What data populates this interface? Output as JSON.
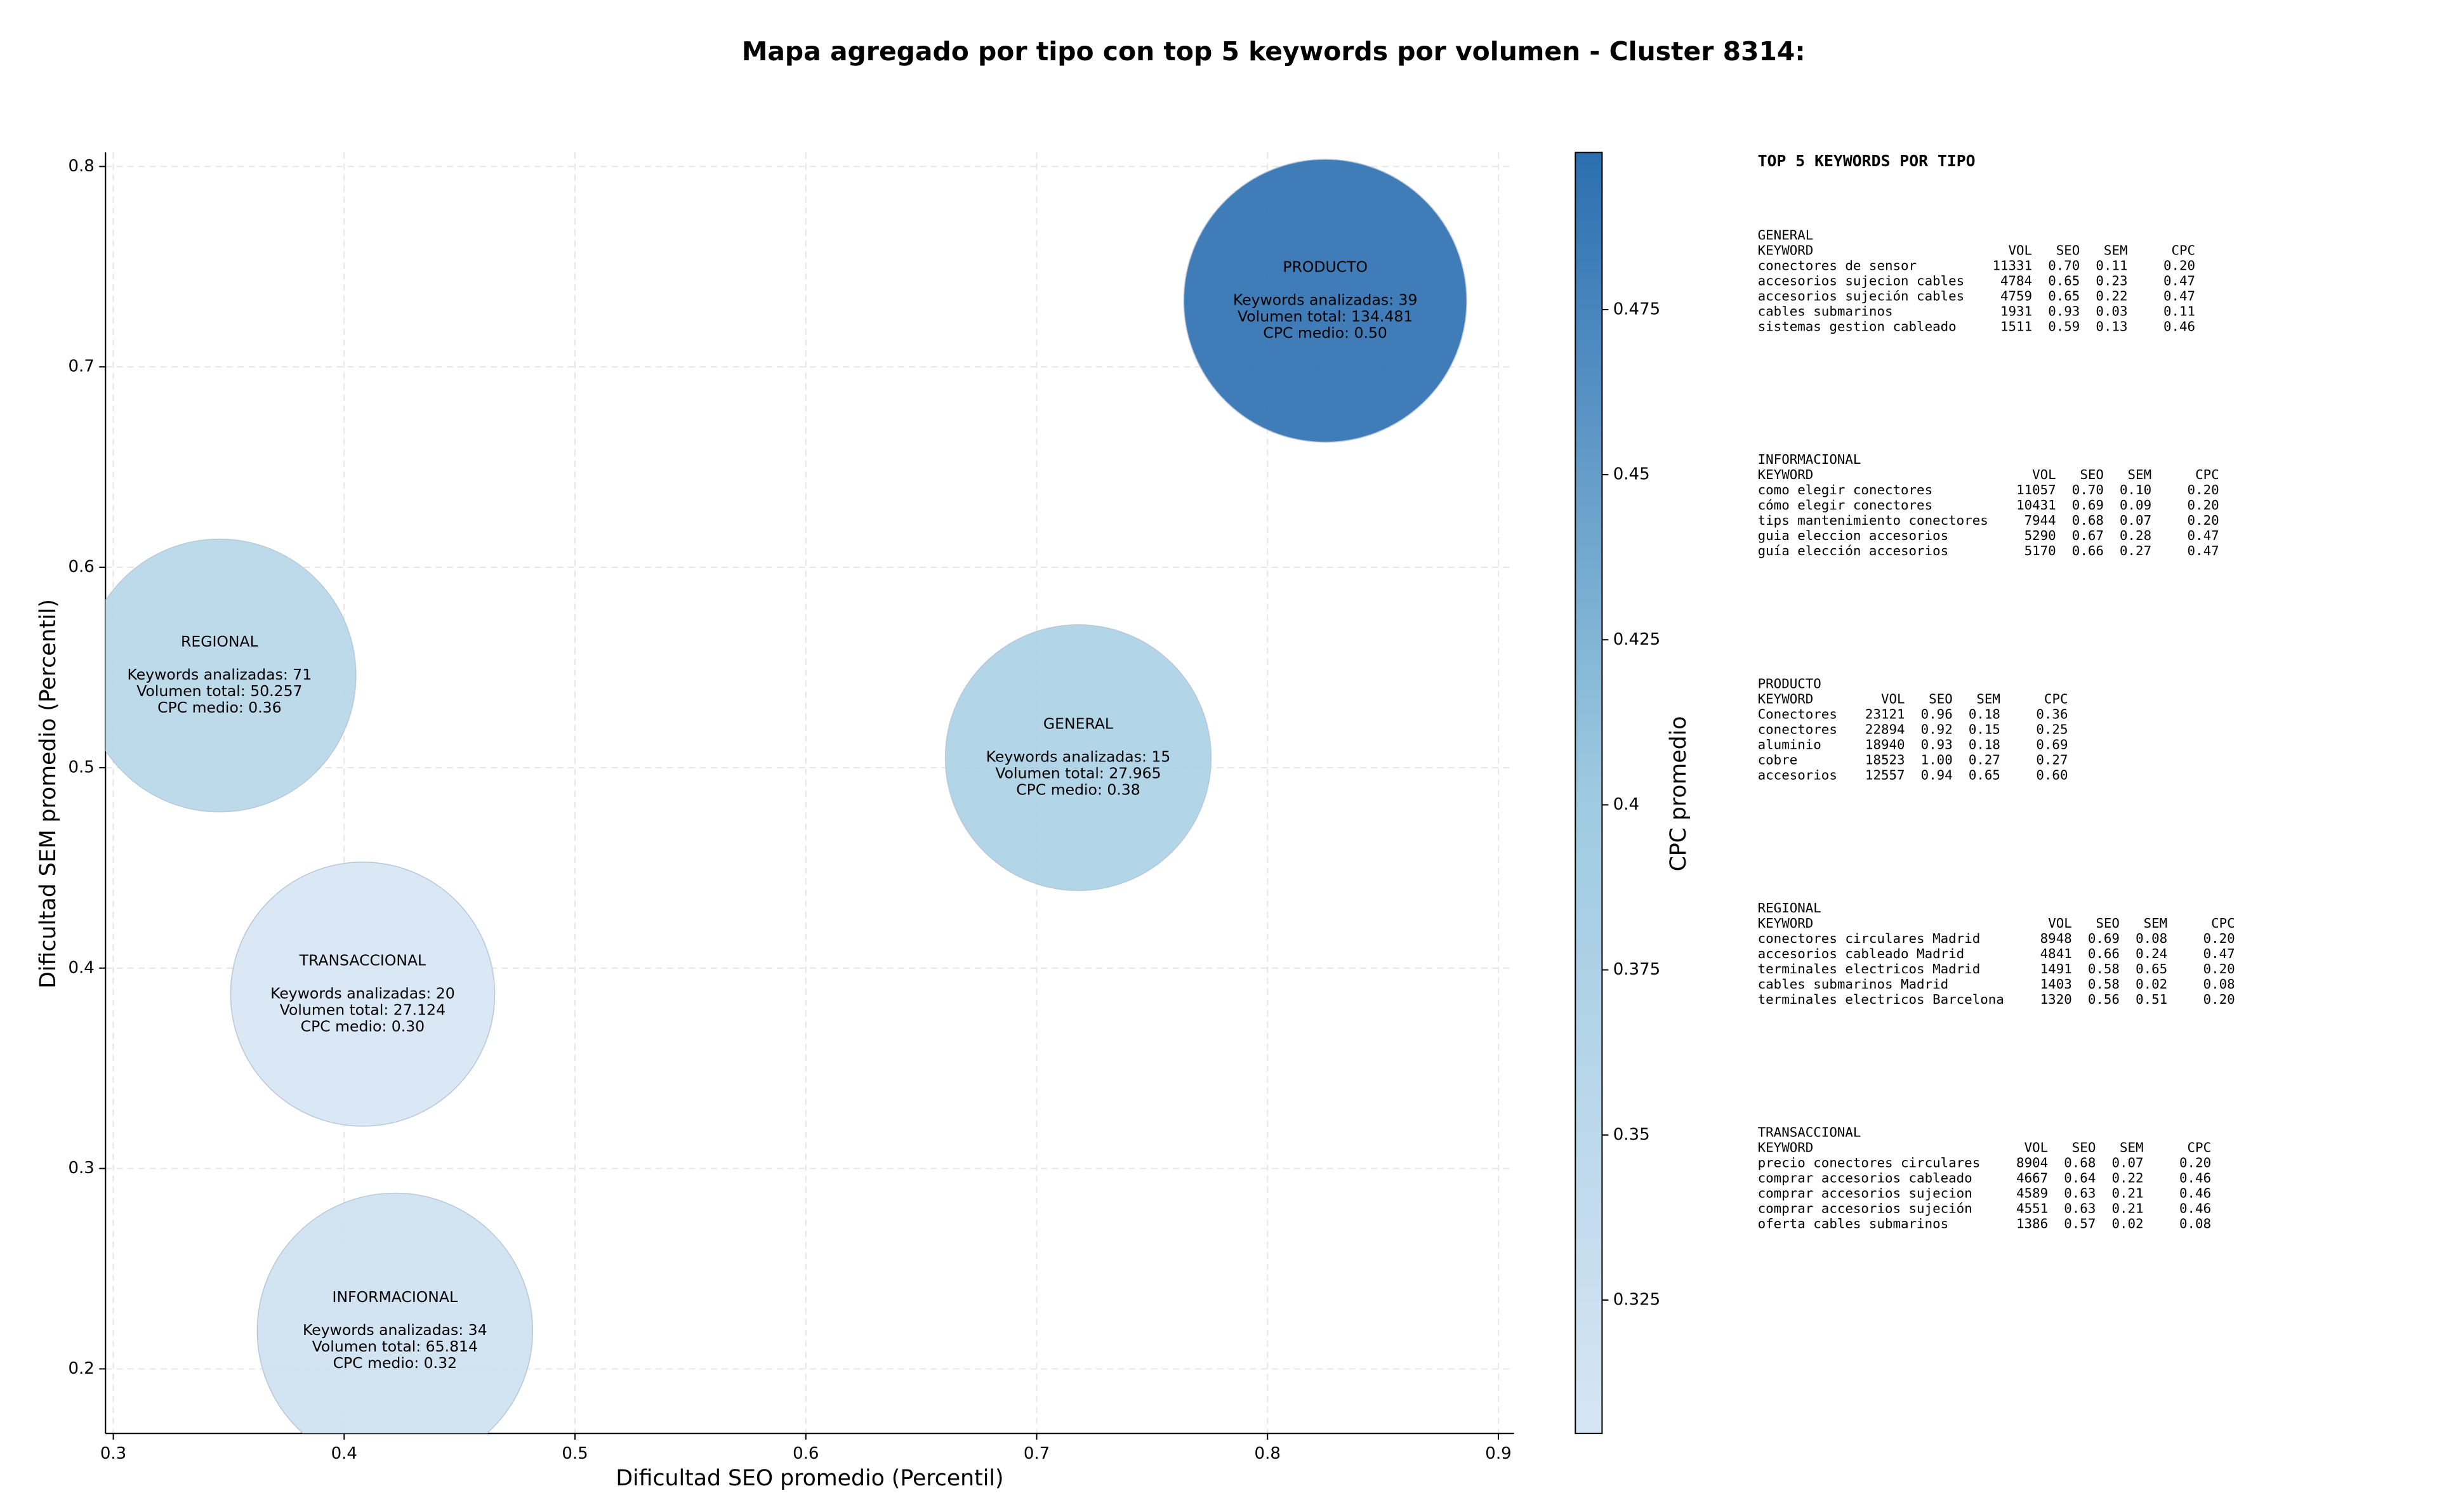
{
  "chart_data": {
    "type": "bubble",
    "title": "Mapa agregado por tipo con top 5 keywords por volumen - Cluster 8314:",
    "xlabel": "Dificultad SEO promedio (Percentil)",
    "ylabel": "Dificultad SEM promedio (Percentil)",
    "colorbar_label": "CPC promedio",
    "categories": [
      "PRODUCTO",
      "REGIONAL",
      "GENERAL",
      "TRANSACCIONAL",
      "INFORMACIONAL"
    ],
    "x": [
      0.825,
      0.346,
      0.718,
      0.408,
      0.422
    ],
    "values": [
      0.733,
      0.546,
      0.505,
      0.387,
      0.219
    ],
    "sizes": [
      134481,
      50257,
      27965,
      27124,
      65814
    ],
    "cpc": [
      0.5,
      0.36,
      0.38,
      0.3,
      0.32
    ],
    "value_labels": [
      [
        "Keywords analizadas: 39",
        "Volumen total: 134.481",
        "CPC medio: 0.50"
      ],
      [
        "Keywords analizadas: 71",
        "Volumen total: 50.257",
        "CPC medio: 0.36"
      ],
      [
        "Keywords analizadas: 15",
        "Volumen total: 27.965",
        "CPC medio: 0.38"
      ],
      [
        "Keywords analizadas: 20",
        "Volumen total: 27.124",
        "CPC medio: 0.30"
      ],
      [
        "Keywords analizadas: 34",
        "Volumen total: 65.814",
        "CPC medio: 0.32"
      ]
    ],
    "xlim": [
      0.2966,
      0.9068
    ],
    "ylim": [
      0.1678,
      0.807
    ],
    "xticks": [
      0.3,
      0.4,
      0.5,
      0.6,
      0.7,
      0.8,
      0.9
    ],
    "yticks": [
      0.2,
      0.3,
      0.4,
      0.5,
      0.6,
      0.7,
      0.8
    ],
    "clim": [
      0.3048,
      0.4988
    ],
    "cticks": [
      0.325,
      0.35,
      0.375,
      0.4,
      0.425,
      0.45,
      0.475
    ],
    "colormap": [
      "#d6e5f4",
      "#9dcae1",
      "#2b6fb0"
    ],
    "grid": true
  },
  "keyword_tables": {
    "title": "TOP 5 KEYWORDS POR TIPO",
    "columns": [
      "KEYWORD",
      "VOL",
      "SEO",
      "SEM",
      "CPC"
    ],
    "groups": [
      {
        "name": "GENERAL",
        "rows": [
          [
            "conectores de sensor",
            "11331",
            "0.70",
            "0.11",
            "0.20"
          ],
          [
            "accesorios sujecion cables",
            "4784",
            "0.65",
            "0.23",
            "0.47"
          ],
          [
            "accesorios sujeción cables",
            "4759",
            "0.65",
            "0.22",
            "0.47"
          ],
          [
            "cables submarinos",
            "1931",
            "0.93",
            "0.03",
            "0.11"
          ],
          [
            "sistemas gestion cableado",
            "1511",
            "0.59",
            "0.13",
            "0.46"
          ]
        ]
      },
      {
        "name": "INFORMACIONAL",
        "rows": [
          [
            "como elegir conectores",
            "11057",
            "0.70",
            "0.10",
            "0.20"
          ],
          [
            "cómo elegir conectores",
            "10431",
            "0.69",
            "0.09",
            "0.20"
          ],
          [
            "tips mantenimiento conectores",
            "7944",
            "0.68",
            "0.07",
            "0.20"
          ],
          [
            "guia eleccion accesorios",
            "5290",
            "0.67",
            "0.28",
            "0.47"
          ],
          [
            "guía elección accesorios",
            "5170",
            "0.66",
            "0.27",
            "0.47"
          ]
        ]
      },
      {
        "name": "PRODUCTO",
        "rows": [
          [
            "Conectores",
            "23121",
            "0.96",
            "0.18",
            "0.36"
          ],
          [
            "conectores",
            "22894",
            "0.92",
            "0.15",
            "0.25"
          ],
          [
            "aluminio",
            "18940",
            "0.93",
            "0.18",
            "0.69"
          ],
          [
            "cobre",
            "18523",
            "1.00",
            "0.27",
            "0.27"
          ],
          [
            "accesorios",
            "12557",
            "0.94",
            "0.65",
            "0.60"
          ]
        ]
      },
      {
        "name": "REGIONAL",
        "rows": [
          [
            "conectores circulares Madrid",
            "8948",
            "0.69",
            "0.08",
            "0.20"
          ],
          [
            "accesorios cableado Madrid",
            "4841",
            "0.66",
            "0.24",
            "0.47"
          ],
          [
            "terminales electricos Madrid",
            "1491",
            "0.58",
            "0.65",
            "0.20"
          ],
          [
            "cables submarinos Madrid",
            "1403",
            "0.58",
            "0.02",
            "0.08"
          ],
          [
            "terminales electricos Barcelona",
            "1320",
            "0.56",
            "0.51",
            "0.20"
          ]
        ]
      },
      {
        "name": "TRANSACCIONAL",
        "rows": [
          [
            "precio conectores circulares",
            "8904",
            "0.68",
            "0.07",
            "0.20"
          ],
          [
            "comprar accesorios cableado",
            "4667",
            "0.64",
            "0.22",
            "0.46"
          ],
          [
            "comprar accesorios sujecion",
            "4589",
            "0.63",
            "0.21",
            "0.46"
          ],
          [
            "comprar accesorios sujeción",
            "4551",
            "0.63",
            "0.21",
            "0.46"
          ],
          [
            "oferta cables submarinos",
            "1386",
            "0.57",
            "0.02",
            "0.08"
          ]
        ]
      }
    ]
  }
}
